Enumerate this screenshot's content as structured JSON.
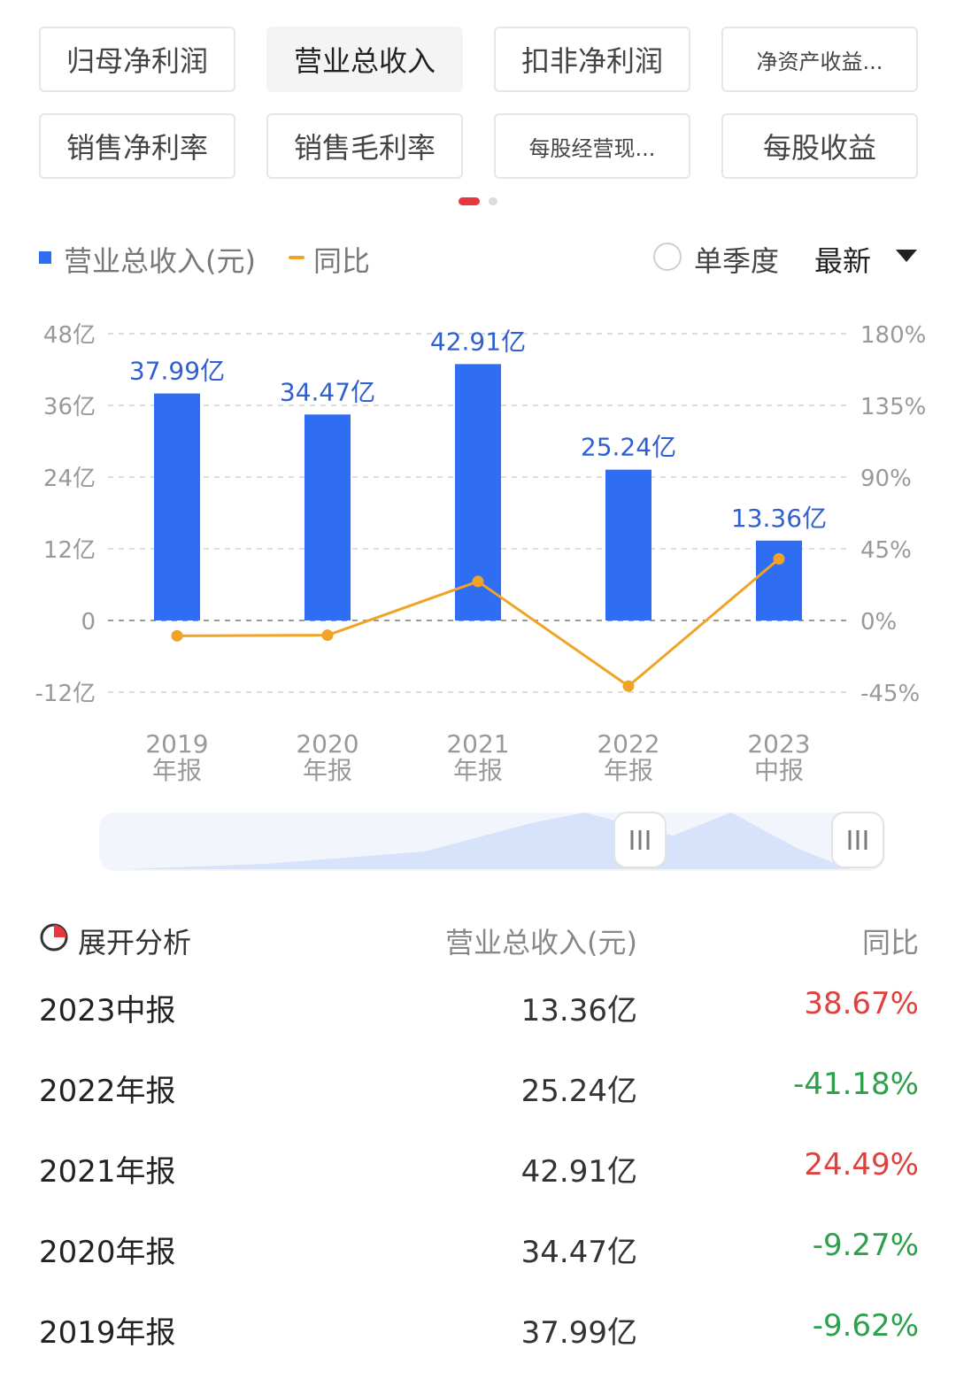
{
  "tabs": [
    {
      "label": "归母净利润",
      "active": false,
      "small": false
    },
    {
      "label": "营业总收入",
      "active": true,
      "small": false
    },
    {
      "label": "扣非净利润",
      "active": false,
      "small": false
    },
    {
      "label": "净资产收益...",
      "active": false,
      "small": true
    },
    {
      "label": "销售净利率",
      "active": false,
      "small": false
    },
    {
      "label": "销售毛利率",
      "active": false,
      "small": false
    },
    {
      "label": "每股经营现...",
      "active": false,
      "small": true
    },
    {
      "label": "每股收益",
      "active": false,
      "small": false
    }
  ],
  "legend": {
    "revenue_label": "营业总收入(元)",
    "yoy_label": "同比",
    "single_quarter": "单季度",
    "latest": "最新"
  },
  "colors": {
    "bar": "#2f6df2",
    "line": "#f0a326",
    "positive": "#e0413f",
    "negative": "#2aa14a"
  },
  "chart_data": {
    "type": "bar",
    "categories": [
      [
        "2019",
        "年报"
      ],
      [
        "2020",
        "年报"
      ],
      [
        "2021",
        "年报"
      ],
      [
        "2022",
        "年报"
      ],
      [
        "2023",
        "中报"
      ]
    ],
    "series": [
      {
        "name": "营业总收入(元)",
        "type": "bar",
        "values": [
          37.99,
          34.47,
          42.91,
          25.24,
          13.36
        ],
        "labels": [
          "37.99亿",
          "34.47亿",
          "42.91亿",
          "25.24亿",
          "13.36亿"
        ]
      },
      {
        "name": "同比",
        "type": "line",
        "axis": "right",
        "values": [
          -9.62,
          -9.27,
          24.49,
          -41.18,
          38.67
        ]
      }
    ],
    "y_left": {
      "range": [
        -12,
        48
      ],
      "ticks": [
        48,
        36,
        24,
        12,
        0,
        -12
      ],
      "tick_labels": [
        "48亿",
        "36亿",
        "24亿",
        "12亿",
        "0",
        "-12亿"
      ]
    },
    "y_right": {
      "range": [
        -45,
        180
      ],
      "ticks": [
        180,
        135,
        90,
        45,
        0,
        -45
      ],
      "tick_labels": [
        "180%",
        "135%",
        "90%",
        "45%",
        "0%",
        "-45%"
      ]
    },
    "grid": true
  },
  "table": {
    "expand_label": "展开分析",
    "col_revenue": "营业总收入(元)",
    "col_yoy": "同比",
    "rows": [
      {
        "period": "2023中报",
        "revenue": "13.36亿",
        "yoy": "38.67%",
        "positive": true
      },
      {
        "period": "2022年报",
        "revenue": "25.24亿",
        "yoy": "-41.18%",
        "positive": false
      },
      {
        "period": "2021年报",
        "revenue": "42.91亿",
        "yoy": "24.49%",
        "positive": true
      },
      {
        "period": "2020年报",
        "revenue": "34.47亿",
        "yoy": "-9.27%",
        "positive": false
      },
      {
        "period": "2019年报",
        "revenue": "37.99亿",
        "yoy": "-9.62%",
        "positive": false
      }
    ]
  }
}
